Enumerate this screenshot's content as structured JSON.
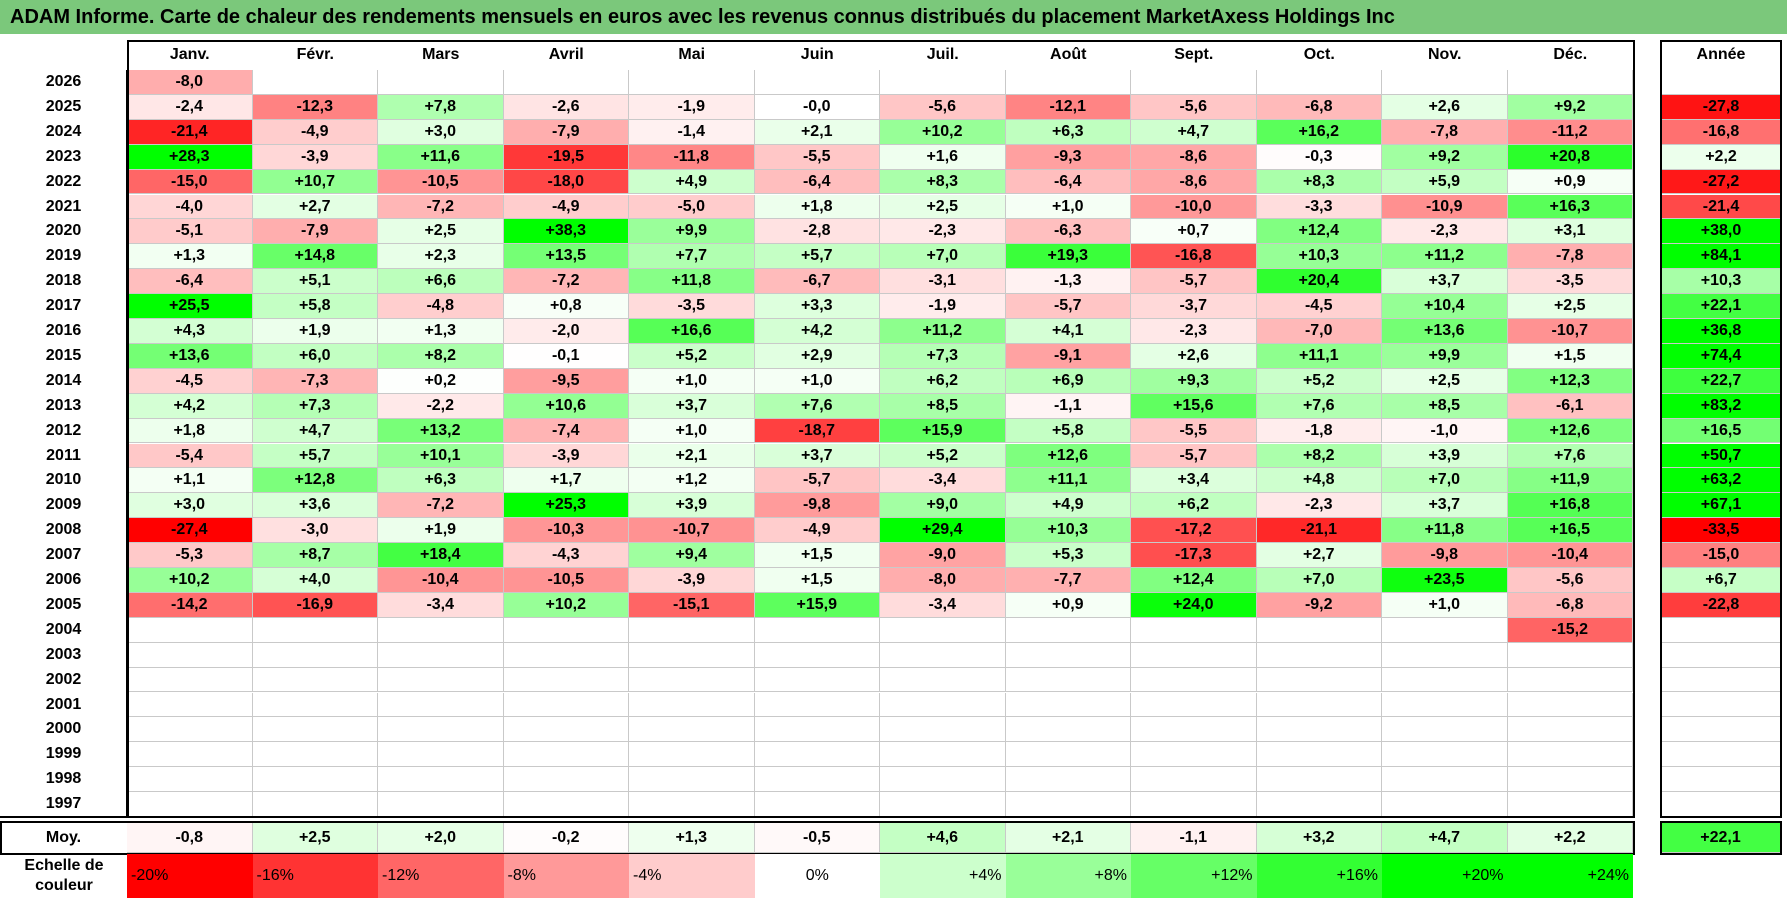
{
  "title": "ADAM Informe. Carte de chaleur des rendements mensuels en euros avec les revenus connus distribués du placement MarketAxess Holdings Inc",
  "months": [
    "Janv.",
    "Févr.",
    "Mars",
    "Avril",
    "Mai",
    "Juin",
    "Juil.",
    "Août",
    "Sept.",
    "Oct.",
    "Nov.",
    "Déc."
  ],
  "year_header": "Année",
  "average_label": "Moy.",
  "scale_label": "Echelle de couleur",
  "chart_data": {
    "type": "heatmap",
    "title": "ADAM Informe. Carte de chaleur des rendements mensuels en euros avec les revenus connus distribués du placement MarketAxess Holdings Inc",
    "rows": [
      {
        "year": "2026",
        "months": [
          "-8,0",
          "",
          "",
          "",
          "",
          "",
          "",
          "",
          "",
          "",
          "",
          ""
        ],
        "annual": ""
      },
      {
        "year": "2025",
        "months": [
          "-2,4",
          "-12,3",
          "+7,8",
          "-2,6",
          "-1,9",
          "-0,0",
          "-5,6",
          "-12,1",
          "-5,6",
          "-6,8",
          "+2,6",
          "+9,2"
        ],
        "annual": "-27,8"
      },
      {
        "year": "2024",
        "months": [
          "-21,4",
          "-4,9",
          "+3,0",
          "-7,9",
          "-1,4",
          "+2,1",
          "+10,2",
          "+6,3",
          "+4,7",
          "+16,2",
          "-7,8",
          "-11,2"
        ],
        "annual": "-16,8"
      },
      {
        "year": "2023",
        "months": [
          "+28,3",
          "-3,9",
          "+11,6",
          "-19,5",
          "-11,8",
          "-5,5",
          "+1,6",
          "-9,3",
          "-8,6",
          "-0,3",
          "+9,2",
          "+20,8"
        ],
        "annual": "+2,2"
      },
      {
        "year": "2022",
        "months": [
          "-15,0",
          "+10,7",
          "-10,5",
          "-18,0",
          "+4,9",
          "-6,4",
          "+8,3",
          "-6,4",
          "-8,6",
          "+8,3",
          "+5,9",
          "+0,9"
        ],
        "annual": "-27,2"
      },
      {
        "year": "2021",
        "months": [
          "-4,0",
          "+2,7",
          "-7,2",
          "-4,9",
          "-5,0",
          "+1,8",
          "+2,5",
          "+1,0",
          "-10,0",
          "-3,3",
          "-10,9",
          "+16,3"
        ],
        "annual": "-21,4"
      },
      {
        "year": "2020",
        "months": [
          "-5,1",
          "-7,9",
          "+2,5",
          "+38,3",
          "+9,9",
          "-2,8",
          "-2,3",
          "-6,3",
          "+0,7",
          "+12,4",
          "-2,3",
          "+3,1"
        ],
        "annual": "+38,0"
      },
      {
        "year": "2019",
        "months": [
          "+1,3",
          "+14,8",
          "+2,3",
          "+13,5",
          "+7,7",
          "+5,7",
          "+7,0",
          "+19,3",
          "-16,8",
          "+10,3",
          "+11,2",
          "-7,8"
        ],
        "annual": "+84,1"
      },
      {
        "year": "2018",
        "months": [
          "-6,4",
          "+5,1",
          "+6,6",
          "-7,2",
          "+11,8",
          "-6,7",
          "-3,1",
          "-1,3",
          "-5,7",
          "+20,4",
          "+3,7",
          "-3,5"
        ],
        "annual": "+10,3"
      },
      {
        "year": "2017",
        "months": [
          "+25,5",
          "+5,8",
          "-4,8",
          "+0,8",
          "-3,5",
          "+3,3",
          "-1,9",
          "-5,7",
          "-3,7",
          "-4,5",
          "+10,4",
          "+2,5"
        ],
        "annual": "+22,1"
      },
      {
        "year": "2016",
        "months": [
          "+4,3",
          "+1,9",
          "+1,3",
          "-2,0",
          "+16,6",
          "+4,2",
          "+11,2",
          "+4,1",
          "-2,3",
          "-7,0",
          "+13,6",
          "-10,7"
        ],
        "annual": "+36,8"
      },
      {
        "year": "2015",
        "months": [
          "+13,6",
          "+6,0",
          "+8,2",
          "-0,1",
          "+5,2",
          "+2,9",
          "+7,3",
          "-9,1",
          "+2,6",
          "+11,1",
          "+9,9",
          "+1,5"
        ],
        "annual": "+74,4"
      },
      {
        "year": "2014",
        "months": [
          "-4,5",
          "-7,3",
          "+0,2",
          "-9,5",
          "+1,0",
          "+1,0",
          "+6,2",
          "+6,9",
          "+9,3",
          "+5,2",
          "+2,5",
          "+12,3"
        ],
        "annual": "+22,7"
      },
      {
        "year": "2013",
        "months": [
          "+4,2",
          "+7,3",
          "-2,2",
          "+10,6",
          "+3,7",
          "+7,6",
          "+8,5",
          "-1,1",
          "+15,6",
          "+7,6",
          "+8,5",
          "-6,1"
        ],
        "annual": "+83,2"
      },
      {
        "year": "2012",
        "months": [
          "+1,8",
          "+4,7",
          "+13,2",
          "-7,4",
          "+1,0",
          "-18,7",
          "+15,9",
          "+5,8",
          "-5,5",
          "-1,8",
          "-1,0",
          "+12,6"
        ],
        "annual": "+16,5"
      },
      {
        "year": "2011",
        "months": [
          "-5,4",
          "+5,7",
          "+10,1",
          "-3,9",
          "+2,1",
          "+3,7",
          "+5,2",
          "+12,6",
          "-5,7",
          "+8,2",
          "+3,9",
          "+7,6"
        ],
        "annual": "+50,7"
      },
      {
        "year": "2010",
        "months": [
          "+1,1",
          "+12,8",
          "+6,3",
          "+1,7",
          "+1,2",
          "-5,7",
          "-3,4",
          "+11,1",
          "+3,4",
          "+4,8",
          "+7,0",
          "+11,9"
        ],
        "annual": "+63,2"
      },
      {
        "year": "2009",
        "months": [
          "+3,0",
          "+3,6",
          "-7,2",
          "+25,3",
          "+3,9",
          "-9,8",
          "+9,0",
          "+4,9",
          "+6,2",
          "-2,3",
          "+3,7",
          "+16,8"
        ],
        "annual": "+67,1"
      },
      {
        "year": "2008",
        "months": [
          "-27,4",
          "-3,0",
          "+1,9",
          "-10,3",
          "-10,7",
          "-4,9",
          "+29,4",
          "+10,3",
          "-17,2",
          "-21,1",
          "+11,8",
          "+16,5"
        ],
        "annual": "-33,5"
      },
      {
        "year": "2007",
        "months": [
          "-5,3",
          "+8,7",
          "+18,4",
          "-4,3",
          "+9,4",
          "+1,5",
          "-9,0",
          "+5,3",
          "-17,3",
          "+2,7",
          "-9,8",
          "-10,4"
        ],
        "annual": "-15,0"
      },
      {
        "year": "2006",
        "months": [
          "+10,2",
          "+4,0",
          "-10,4",
          "-10,5",
          "-3,9",
          "+1,5",
          "-8,0",
          "-7,7",
          "+12,4",
          "+7,0",
          "+23,5",
          "-5,6"
        ],
        "annual": "+6,7"
      },
      {
        "year": "2005",
        "months": [
          "-14,2",
          "-16,9",
          "-3,4",
          "+10,2",
          "-15,1",
          "+15,9",
          "-3,4",
          "+0,9",
          "+24,0",
          "-9,2",
          "+1,0",
          "-6,8"
        ],
        "annual": "-22,8"
      },
      {
        "year": "2004",
        "months": [
          "",
          "",
          "",
          "",
          "",
          "",
          "",
          "",
          "",
          "",
          "",
          "-15,2"
        ],
        "annual": ""
      },
      {
        "year": "2003",
        "months": [
          "",
          "",
          "",
          "",
          "",
          "",
          "",
          "",
          "",
          "",
          "",
          ""
        ],
        "annual": ""
      },
      {
        "year": "2002",
        "months": [
          "",
          "",
          "",
          "",
          "",
          "",
          "",
          "",
          "",
          "",
          "",
          ""
        ],
        "annual": ""
      },
      {
        "year": "2001",
        "months": [
          "",
          "",
          "",
          "",
          "",
          "",
          "",
          "",
          "",
          "",
          "",
          ""
        ],
        "annual": ""
      },
      {
        "year": "2000",
        "months": [
          "",
          "",
          "",
          "",
          "",
          "",
          "",
          "",
          "",
          "",
          "",
          ""
        ],
        "annual": ""
      },
      {
        "year": "1999",
        "months": [
          "",
          "",
          "",
          "",
          "",
          "",
          "",
          "",
          "",
          "",
          "",
          ""
        ],
        "annual": ""
      },
      {
        "year": "1998",
        "months": [
          "",
          "",
          "",
          "",
          "",
          "",
          "",
          "",
          "",
          "",
          "",
          ""
        ],
        "annual": ""
      },
      {
        "year": "1997",
        "months": [
          "",
          "",
          "",
          "",
          "",
          "",
          "",
          "",
          "",
          "",
          "",
          ""
        ],
        "annual": ""
      }
    ],
    "averages": [
      "-0,8",
      "+2,5",
      "+2,0",
      "-0,2",
      "+1,3",
      "-0,5",
      "+4,6",
      "+2,1",
      "-1,1",
      "+3,2",
      "+4,7",
      "+2,2"
    ],
    "average_annual": "+22,1",
    "scale": [
      {
        "label": "-20%",
        "value": -20
      },
      {
        "label": "-16%",
        "value": -16
      },
      {
        "label": "-12%",
        "value": -12
      },
      {
        "label": "-8%",
        "value": -8
      },
      {
        "label": "-4%",
        "value": -4
      },
      {
        "label": "0%",
        "value": 0
      },
      {
        "label": "+4%",
        "value": 4
      },
      {
        "label": "+8%",
        "value": 8
      },
      {
        "label": "+12%",
        "value": 12
      },
      {
        "label": "+16%",
        "value": 16
      },
      {
        "label": "+20%",
        "value": 20
      },
      {
        "label": "+24%",
        "value": 24
      }
    ],
    "colors": {
      "negative": "#ff0000",
      "neutral": "#ffffff",
      "positive": "#00ff00",
      "title_bar": "#7bc87b"
    }
  }
}
